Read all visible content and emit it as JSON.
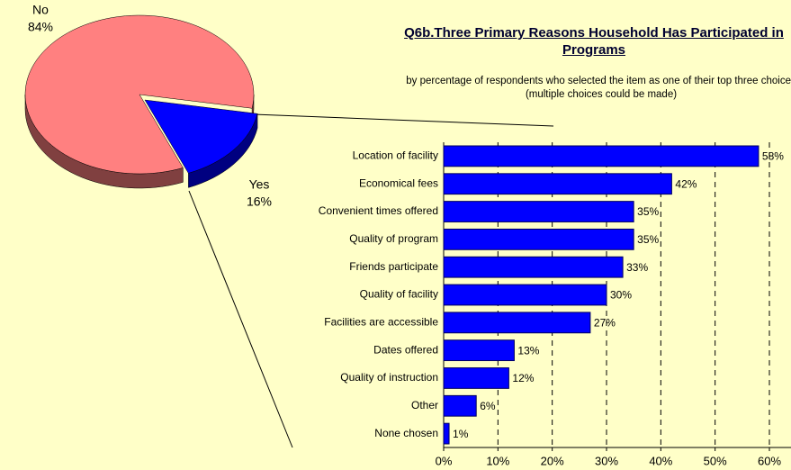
{
  "chart_data": [
    {
      "type": "pie",
      "categories": [
        "No",
        "Yes"
      ],
      "values": [
        84,
        16
      ],
      "value_labels": [
        "84%",
        "16%"
      ],
      "colors": [
        "#FF8080",
        "#0000FF"
      ]
    },
    {
      "type": "barh",
      "title": "Q6b.Three Primary Reasons Household Has Participated in Programs",
      "subtitle": "by percentage of respondents who selected the item as one of their top three choices (multiple choices could be made)",
      "categories": [
        "Location of facility",
        "Economical fees",
        "Convenient times offered",
        "Quality of program",
        "Friends participate",
        "Quality of facility",
        "Facilities are accessible",
        "Dates offered",
        "Quality of instruction",
        "Other",
        "None chosen"
      ],
      "values": [
        58,
        42,
        35,
        35,
        33,
        30,
        27,
        13,
        12,
        6,
        1
      ],
      "value_labels": [
        "58%",
        "42%",
        "35%",
        "35%",
        "33%",
        "30%",
        "27%",
        "13%",
        "12%",
        "6%",
        "1%"
      ],
      "color": "#0000FF",
      "xlim": [
        0,
        60
      ],
      "xticks": [
        {
          "value": 0,
          "label": "0%"
        },
        {
          "value": 10,
          "label": "10%"
        },
        {
          "value": 20,
          "label": "20%"
        },
        {
          "value": 30,
          "label": "30%"
        },
        {
          "value": 40,
          "label": "40%"
        },
        {
          "value": 50,
          "label": "50%"
        },
        {
          "value": 60,
          "label": "60%"
        }
      ],
      "grid": true
    }
  ]
}
